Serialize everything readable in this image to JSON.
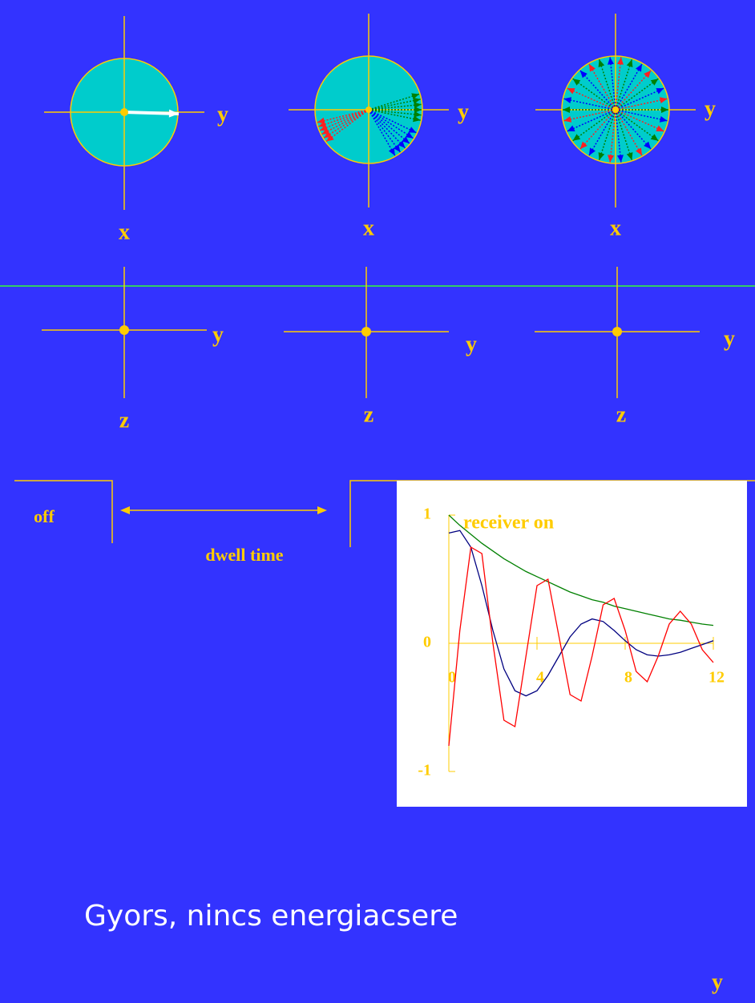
{
  "top_row": [
    {
      "axis_h": "y",
      "axis_v": "x"
    },
    {
      "axis_h": "y",
      "axis_v": "x"
    },
    {
      "axis_h": "y",
      "axis_v": "x"
    }
  ],
  "middle_row": [
    {
      "axis_h": "y",
      "axis_v": "z"
    },
    {
      "axis_h": "y",
      "axis_v": "z"
    },
    {
      "axis_h": "y",
      "axis_v": "z"
    }
  ],
  "pulse": {
    "off": "off",
    "dwell": "dwell time"
  },
  "caption": "Gyors, nincs energiacsere",
  "footer_label": "y",
  "chart_data": {
    "type": "line",
    "annotation": "receiver on",
    "x": [
      0,
      0.5,
      1,
      1.5,
      2,
      2.5,
      3,
      3.5,
      4,
      4.5,
      5,
      5.5,
      6,
      6.5,
      7,
      7.5,
      8,
      8.5,
      9,
      9.5,
      10,
      10.5,
      11,
      11.5,
      12
    ],
    "series": [
      {
        "color": "#008000",
        "values": [
          1.0,
          0.92,
          0.85,
          0.78,
          0.72,
          0.66,
          0.61,
          0.56,
          0.52,
          0.48,
          0.44,
          0.4,
          0.37,
          0.34,
          0.32,
          0.29,
          0.27,
          0.25,
          0.23,
          0.21,
          0.19,
          0.18,
          0.165,
          0.15,
          0.14
        ]
      },
      {
        "color": "#000080",
        "values": [
          0.86,
          0.88,
          0.75,
          0.45,
          0.1,
          -0.2,
          -0.37,
          -0.41,
          -0.37,
          -0.25,
          -0.1,
          0.05,
          0.15,
          0.19,
          0.17,
          0.1,
          0.02,
          -0.05,
          -0.09,
          -0.1,
          -0.09,
          -0.07,
          -0.04,
          -0.01,
          0.02
        ]
      },
      {
        "color": "#ff0000",
        "values": [
          -0.8,
          0.1,
          0.75,
          0.7,
          0.0,
          -0.6,
          -0.65,
          -0.1,
          0.45,
          0.5,
          0.05,
          -0.4,
          -0.45,
          -0.1,
          0.3,
          0.35,
          0.1,
          -0.22,
          -0.3,
          -0.1,
          0.15,
          0.25,
          0.15,
          -0.05,
          -0.15
        ]
      }
    ],
    "xlim": [
      0,
      12
    ],
    "ylim": [
      -1,
      1
    ],
    "xticks": [
      0,
      4,
      8,
      12
    ],
    "yticks": [
      -1,
      0,
      1
    ],
    "axis_color": "#ffcc00"
  }
}
